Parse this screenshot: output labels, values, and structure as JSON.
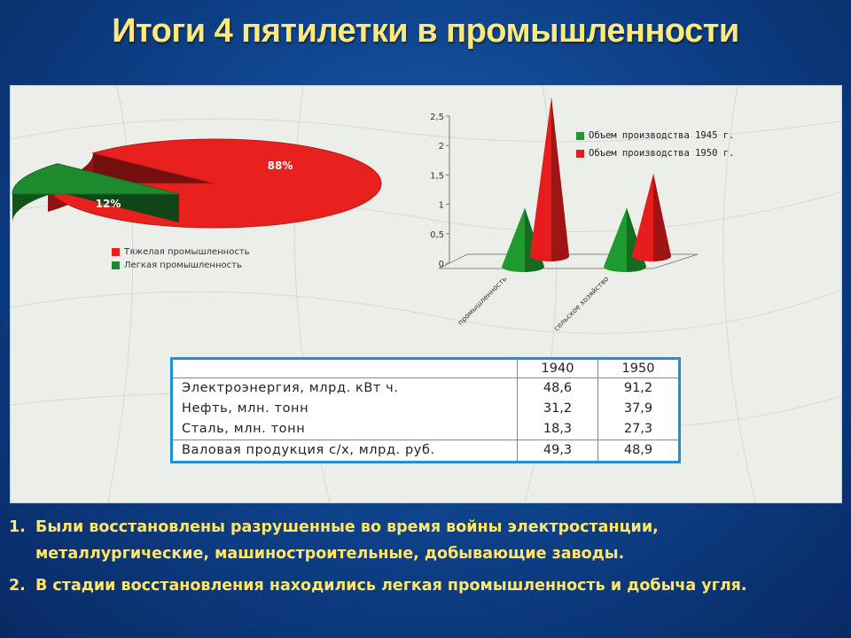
{
  "slide": {
    "title": "Итоги 4 пятилетки в промышленности"
  },
  "chart_data": [
    {
      "type": "pie",
      "labels": [
        "Тяжелая промышленность",
        "Легкая промышленность"
      ],
      "values": [
        88,
        12
      ],
      "data_labels": [
        "88%",
        "12%"
      ],
      "colors": [
        "#e8211f",
        "#1e8a2e"
      ],
      "legend": "bottom"
    },
    {
      "type": "bar",
      "style": "3d-cone",
      "categories": [
        "промышленность",
        "сельское хозяйство"
      ],
      "series": [
        {
          "name": "Объем производства 1945 г.",
          "values": [
            1.0,
            1.0
          ],
          "color": "#1e9a2e"
        },
        {
          "name": "Объем производства 1950 г.",
          "values": [
            2.7,
            1.4
          ],
          "color": "#e51d1d"
        }
      ],
      "yticks": [
        "0",
        "0,5",
        "1",
        "1,5",
        "2",
        "2,5"
      ],
      "ylim": [
        0,
        2.5
      ],
      "legend": "top-right"
    },
    {
      "type": "table",
      "headers": [
        "",
        "1940",
        "1950"
      ],
      "rows": [
        [
          "Электроэнергия, млрд. кВт ч.",
          "48,6",
          "91,2"
        ],
        [
          "Нефть, млн. тонн",
          "31,2",
          "37,9"
        ],
        [
          "Сталь, млн. тонн",
          "18,3",
          "27,3"
        ],
        [
          "Валовая продукция с/х, млрд. руб.",
          "49,3",
          "48,9"
        ]
      ]
    }
  ],
  "notes": [
    {
      "num": "1.",
      "text": "Были восстановлены разрушенные во время войны  электростанции, металлургические, машиностроительные, добывающие заводы."
    },
    {
      "num": "2.",
      "text": "В стадии восстановления находились легкая промышленность и добыча угля."
    }
  ]
}
